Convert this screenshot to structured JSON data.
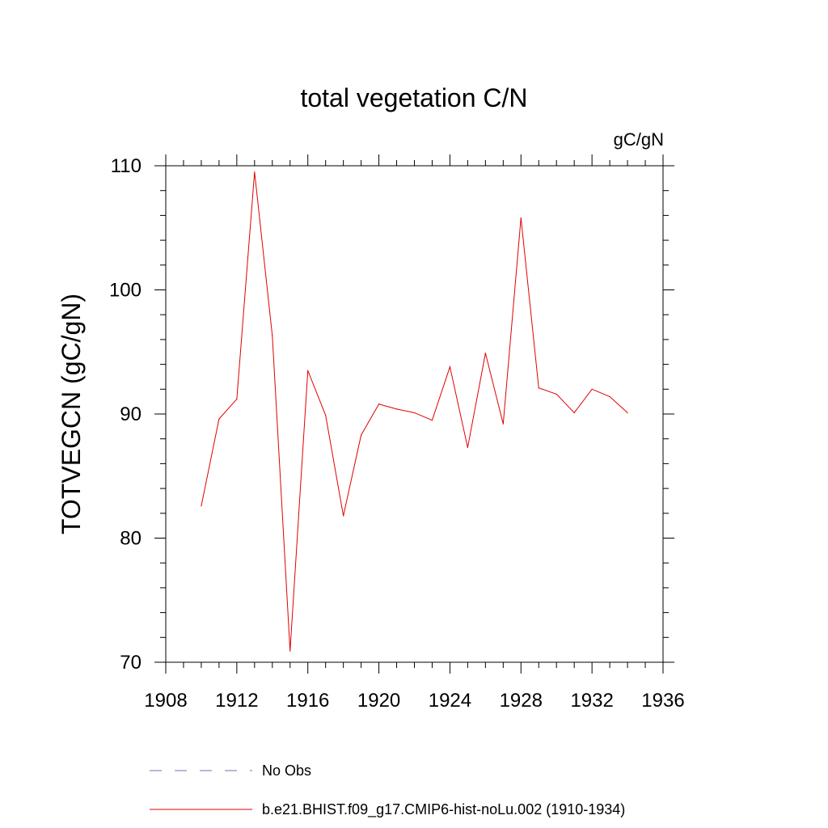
{
  "chart_data": {
    "type": "line",
    "title": "total vegetation C/N",
    "units_label": "gC/gN",
    "xlabel": "",
    "ylabel": "TOTVEGCN  (gC/gN)",
    "xlim": [
      1908,
      1936
    ],
    "ylim": [
      70,
      110
    ],
    "x_ticks": [
      1908,
      1912,
      1916,
      1920,
      1924,
      1928,
      1932,
      1936
    ],
    "y_ticks": [
      70,
      80,
      90,
      100,
      110
    ],
    "grid": false,
    "legend_position": "bottom",
    "legend": [
      {
        "label": "No Obs",
        "color": "#6f6fb5",
        "style": "dashed"
      },
      {
        "label": "b.e21.BHIST.f09_g17.CMIP6-hist-noLu.002 (1910-1934)",
        "color": "#e00000",
        "style": "solid"
      }
    ],
    "series": [
      {
        "name": "b.e21.BHIST.f09_g17.CMIP6-hist-noLu.002 (1910-1934)",
        "color": "#e00000",
        "x": [
          1910,
          1911,
          1912,
          1913,
          1914,
          1915,
          1916,
          1917,
          1918,
          1919,
          1920,
          1921,
          1922,
          1923,
          1924,
          1925,
          1926,
          1927,
          1928,
          1929,
          1930,
          1931,
          1932,
          1933,
          1934
        ],
        "y": [
          82.6,
          89.6,
          91.2,
          109.5,
          96.3,
          70.9,
          93.5,
          89.9,
          81.8,
          88.3,
          90.8,
          90.4,
          90.1,
          89.5,
          93.8,
          87.3,
          94.9,
          89.2,
          105.8,
          92.1,
          91.6,
          90.1,
          92.0,
          91.4,
          90.1
        ]
      }
    ]
  }
}
